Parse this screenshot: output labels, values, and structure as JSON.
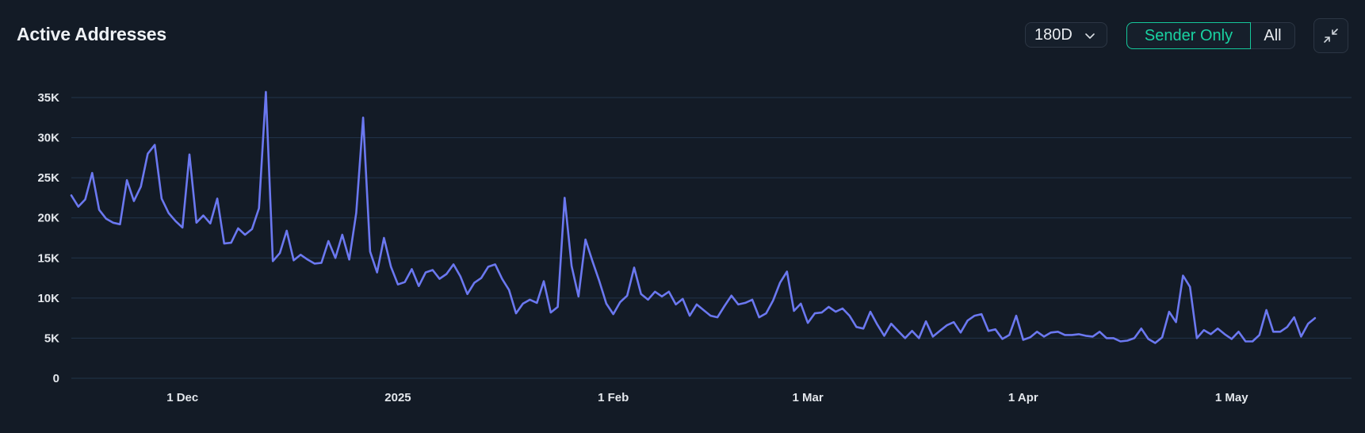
{
  "header": {
    "title": "Active Addresses",
    "range_select": {
      "value": "180D",
      "icon": "chevron-down-icon"
    },
    "filter_toggle": {
      "options": [
        "Sender Only",
        "All"
      ],
      "selected": "Sender Only",
      "accent_color": "#19d3a2"
    },
    "collapse_button": {
      "icon": "collapse-arrows-icon"
    }
  },
  "chart_data": {
    "type": "line",
    "title": "Active Addresses",
    "xlabel": "",
    "ylabel": "",
    "ylim": [
      0,
      35000
    ],
    "yticks": [
      0,
      5000,
      10000,
      15000,
      20000,
      25000,
      30000,
      35000
    ],
    "ytick_labels": [
      "0",
      "5K",
      "10K",
      "15K",
      "20K",
      "25K",
      "30K",
      "35K"
    ],
    "xtick_labels": [
      {
        "label": "1 Dec",
        "date": "2024-12-01"
      },
      {
        "label": "2025",
        "date": "2025-01-01"
      },
      {
        "label": "1 Feb",
        "date": "2025-02-01"
      },
      {
        "label": "1 Mar",
        "date": "2025-03-01"
      },
      {
        "label": "1 Apr",
        "date": "2025-04-01"
      },
      {
        "label": "1 May",
        "date": "2025-05-01"
      }
    ],
    "grid": true,
    "line_color": "#6b78f0",
    "x_start": "2024-11-15",
    "series": [
      {
        "values": [
          22800,
          21400,
          22300,
          25600,
          21000,
          19900,
          19400,
          19200,
          24700,
          22100,
          23900,
          28000,
          29100,
          22400,
          20600,
          19600,
          18800,
          27900,
          19400,
          20300,
          19300,
          22400,
          16800,
          16900,
          18700,
          17900,
          18600,
          21200,
          35700,
          14600,
          15600,
          18400,
          14700,
          15400,
          14800,
          14300,
          14400,
          17100,
          15000,
          17900,
          14800,
          20600,
          32500,
          15800,
          13200,
          17500,
          13900,
          11700,
          12000,
          13600,
          11500,
          13200,
          13500,
          12400,
          13000,
          14200,
          12700,
          10500,
          11900,
          12500,
          13900,
          14200,
          12400,
          11000,
          8100,
          9300,
          9800,
          9400,
          12100,
          8200,
          8900,
          22500,
          14000,
          10200,
          17300,
          14600,
          12100,
          9300,
          8000,
          9500,
          10300,
          13800,
          10500,
          9800,
          10800,
          10200,
          10800,
          9200,
          9900,
          7800,
          9200,
          8500,
          7800,
          7600,
          9000,
          10300,
          9200,
          9400,
          9800,
          7600,
          8100,
          9700,
          11900,
          13300,
          8400,
          9300,
          6900,
          8100,
          8200,
          8900,
          8300,
          8700,
          7800,
          6400,
          6200,
          8300,
          6700,
          5300,
          6800,
          5900,
          5000,
          5900,
          5000,
          7100,
          5200,
          5900,
          6600,
          7000,
          5700,
          7200,
          7800,
          8000,
          5900,
          6100,
          4900,
          5400,
          7800,
          4800,
          5100,
          5800,
          5200,
          5700,
          5800,
          5400,
          5400,
          5500,
          5300,
          5200,
          5800,
          5000,
          5000,
          4600,
          4700,
          5000,
          6200,
          4900,
          4400,
          5100,
          8300,
          7000,
          12800,
          11400,
          5000,
          6000,
          5500,
          6200,
          5500,
          4900,
          5800,
          4600,
          4600,
          5400,
          8500,
          5800,
          5800,
          6400,
          7600,
          5200,
          6800,
          7500
        ]
      }
    ]
  }
}
